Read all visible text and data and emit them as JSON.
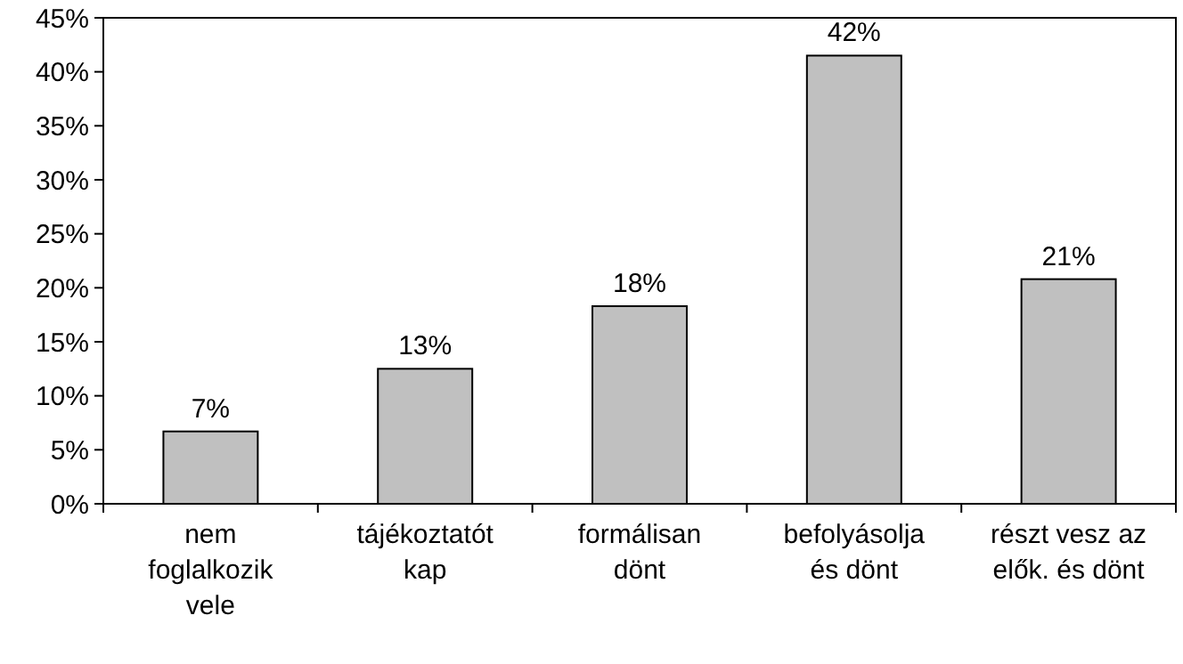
{
  "chart_data": {
    "type": "bar",
    "categories": [
      "nem foglalkozik vele",
      "tájékoztatót kap",
      "formálisan dönt",
      "befolyásolja és dönt",
      "részt vesz az elők. és dönt"
    ],
    "values": [
      6.7,
      12.5,
      18.3,
      41.5,
      20.8
    ],
    "value_labels": [
      "7%",
      "13%",
      "18%",
      "42%",
      "21%"
    ],
    "color": "#c0c0c0",
    "ylim": [
      0,
      45
    ],
    "yticks": [
      {
        "value": 0,
        "label": "0%"
      },
      {
        "value": 5,
        "label": "5%"
      },
      {
        "value": 10,
        "label": "10%"
      },
      {
        "value": 15,
        "label": "15%"
      },
      {
        "value": 20,
        "label": "20%"
      },
      {
        "value": 25,
        "label": "25%"
      },
      {
        "value": 30,
        "label": "30%"
      },
      {
        "value": 35,
        "label": "35%"
      },
      {
        "value": 40,
        "label": "40%"
      },
      {
        "value": 45,
        "label": "45%"
      }
    ],
    "grid": false
  }
}
